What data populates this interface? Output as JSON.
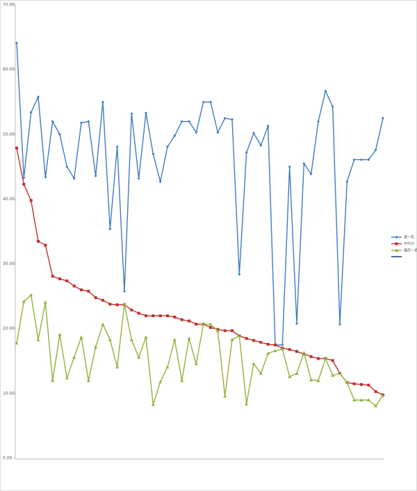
{
  "chart_data": {
    "type": "line",
    "categories": [
      null,
      null,
      null,
      null,
      null,
      null,
      null,
      null,
      null,
      null,
      null,
      null,
      null,
      null,
      null,
      null,
      null,
      null,
      null,
      null,
      null,
      null,
      null,
      null,
      null,
      null,
      null,
      null,
      null,
      null,
      null,
      null,
      null,
      null,
      null,
      null,
      null,
      null,
      null,
      null,
      null,
      null,
      null,
      null,
      null,
      null,
      null,
      null,
      null,
      null,
      null,
      null
    ],
    "ylim": [
      0,
      70
    ],
    "yticks": [
      {
        "value": 0,
        "label": "0.00"
      },
      {
        "value": 10,
        "label": "10.00"
      },
      {
        "value": 20,
        "label": "20.00"
      },
      {
        "value": 30,
        "label": "30.00"
      },
      {
        "value": 40,
        "label": "40.00"
      },
      {
        "value": 50,
        "label": "50.00"
      },
      {
        "value": 60,
        "label": "60.00"
      },
      {
        "value": 70,
        "label": "70.00"
      }
    ],
    "grid": false,
    "legend": "right",
    "series": [
      {
        "name": "第一名",
        "color": "#3d7bc4",
        "marker": "diamond",
        "values": [
          64.1,
          43.3,
          53.4,
          55.8,
          43.4,
          52.0,
          50.0,
          45.0,
          43.2,
          51.8,
          52.0,
          43.6,
          55.0,
          35.4,
          48.1,
          25.8,
          53.2,
          43.2,
          53.3,
          47.0,
          42.7,
          48.1,
          49.8,
          52.0,
          52.0,
          50.3,
          55.0,
          55.0,
          50.3,
          52.5,
          52.3,
          28.4,
          47.2,
          50.2,
          48.3,
          51.3,
          17.5,
          17.5,
          45.0,
          20.8,
          45.5,
          43.9,
          52.0,
          56.7,
          54.3,
          20.7,
          42.7,
          46.1,
          46.1,
          46.1,
          47.6,
          52.5
        ]
      },
      {
        "name": "平均分",
        "color": "#c0302b",
        "marker": "square",
        "values": [
          47.9,
          42.3,
          39.8,
          33.5,
          32.9,
          28.1,
          27.7,
          27.4,
          26.6,
          26.0,
          25.8,
          24.8,
          24.4,
          23.8,
          23.7,
          23.7,
          22.9,
          22.4,
          22.0,
          22.0,
          22.0,
          22.0,
          21.8,
          21.4,
          21.2,
          20.7,
          20.7,
          20.2,
          19.9,
          19.7,
          19.7,
          18.9,
          18.5,
          18.2,
          17.9,
          17.6,
          17.5,
          17.0,
          16.8,
          16.5,
          16.1,
          15.7,
          15.4,
          15.4,
          15.1,
          13.1,
          11.7,
          11.5,
          11.4,
          11.3,
          10.3,
          9.8
        ]
      },
      {
        "name": "最后一名",
        "color": "#8db43a",
        "marker": "triangle",
        "values": [
          17.8,
          24.2,
          25.2,
          18.3,
          24.1,
          12.0,
          19.1,
          12.4,
          15.6,
          18.7,
          12.0,
          17.2,
          20.7,
          18.3,
          14.1,
          23.8,
          18.3,
          15.6,
          18.7,
          8.3,
          11.8,
          14.1,
          18.3,
          12.0,
          18.5,
          14.6,
          20.7,
          20.7,
          19.7,
          9.6,
          18.3,
          18.9,
          8.4,
          14.6,
          13.1,
          16.2,
          16.6,
          16.9,
          12.6,
          13.1,
          16.3,
          12.1,
          12.0,
          15.4,
          12.8,
          13.1,
          11.7,
          9.0,
          9.0,
          9.0,
          8.1,
          9.7
        ]
      }
    ]
  }
}
